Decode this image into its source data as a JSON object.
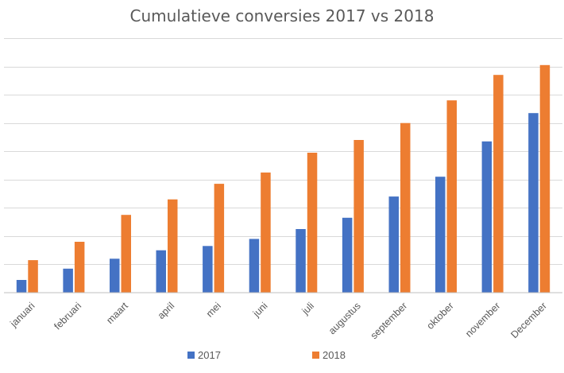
{
  "chart_data": {
    "type": "bar",
    "title": "Cumulatieve conversies 2017 vs 2018",
    "xlabel": "",
    "ylabel": "",
    "categories": [
      "januari",
      "februari",
      "maart",
      "april",
      "mei",
      "juni",
      "juli",
      "augustus",
      "september",
      "oktober",
      "november",
      "December"
    ],
    "series": [
      {
        "name": "2017",
        "color": "#4472C4",
        "values": [
          0.45,
          0.85,
          1.2,
          1.5,
          1.65,
          1.9,
          2.25,
          2.65,
          3.4,
          4.1,
          5.35,
          6.35
        ]
      },
      {
        "name": "2018",
        "color": "#ED7D31",
        "values": [
          1.15,
          1.8,
          2.75,
          3.3,
          3.85,
          4.25,
          4.95,
          5.4,
          6.0,
          6.8,
          7.7,
          8.05
        ]
      }
    ],
    "ylim": [
      0,
      9
    ],
    "y_tick_step": 1,
    "y_tick_labels_visible": false,
    "grid": true,
    "legend_position": "bottom"
  }
}
